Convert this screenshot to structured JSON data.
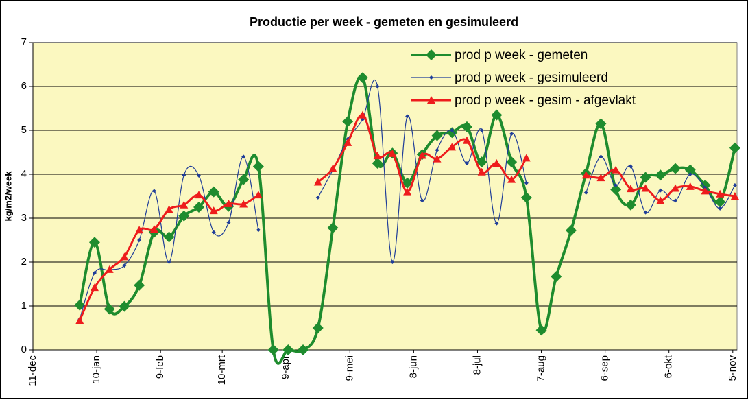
{
  "chart_data": {
    "type": "line",
    "title": "Productie per week - gemeten en gesimuleerd",
    "y_label": "kg/m2/week",
    "x": [
      "2-jan",
      "9-jan",
      "16-jan",
      "23-jan",
      "30-jan",
      "6-feb",
      "13-feb",
      "20-feb",
      "27-feb",
      "6-mrt",
      "13-mrt",
      "20-mrt",
      "27-mrt",
      "3-apr",
      "10-apr",
      "17-apr",
      "24-apr",
      "1-mei",
      "8-mei",
      "15-mei",
      "22-mei",
      "29-mei",
      "5-jun",
      "12-jun",
      "19-jun",
      "26-jun",
      "3-jul",
      "10-jul",
      "17-jul",
      "24-jul",
      "31-jul",
      "7-aug",
      "14-aug",
      "21-aug",
      "28-aug",
      "4-sep",
      "11-sep",
      "18-sep",
      "25-sep",
      "2-okt",
      "9-okt",
      "16-okt",
      "23-okt",
      "30-okt",
      "6-nov"
    ],
    "series": [
      {
        "name": "prod p week - gemeten",
        "color": "#1e8c2e",
        "marker": "diamond",
        "values": [
          1.02,
          2.45,
          0.93,
          0.99,
          1.47,
          2.68,
          2.57,
          3.05,
          3.25,
          3.6,
          3.27,
          3.88,
          4.18,
          0,
          0,
          0,
          0.5,
          2.78,
          5.2,
          6.2,
          4.25,
          4.48,
          3.8,
          4.45,
          4.88,
          4.95,
          5.08,
          4.28,
          5.35,
          4.28,
          3.47,
          0.45,
          1.67,
          2.72,
          4.02,
          5.15,
          3.65,
          3.3,
          3.93,
          3.98,
          4.13,
          4.1,
          3.75,
          3.37,
          4.6
        ]
      },
      {
        "name": "prod p week - gesimuleerd",
        "color": "#1f3d99",
        "marker": "small-diamond",
        "values": [
          0.7,
          1.75,
          1.82,
          1.92,
          2.5,
          3.62,
          2.0,
          3.98,
          3.97,
          2.68,
          2.9,
          4.4,
          2.73,
          null,
          null,
          null,
          3.47,
          4.1,
          4.8,
          5.25,
          6.0,
          2.0,
          5.32,
          3.4,
          4.55,
          5.0,
          4.25,
          5.0,
          2.88,
          4.92,
          3.8,
          null,
          null,
          null,
          3.58,
          4.4,
          3.75,
          4.18,
          3.13,
          3.63,
          3.4,
          4.0,
          3.7,
          3.22,
          3.75
        ]
      },
      {
        "name": "prod p week - gesim - afgevlakt",
        "color": "#ee1c1c",
        "marker": "triangle",
        "values": [
          0.67,
          1.42,
          1.83,
          2.12,
          2.73,
          2.75,
          3.2,
          3.3,
          3.53,
          3.17,
          3.33,
          3.32,
          3.53,
          null,
          null,
          null,
          3.82,
          4.13,
          4.72,
          5.35,
          4.42,
          4.47,
          3.6,
          4.43,
          4.35,
          4.62,
          4.77,
          4.05,
          4.25,
          3.88,
          4.37,
          null,
          null,
          null,
          3.98,
          3.92,
          4.1,
          3.67,
          3.68,
          3.4,
          3.68,
          3.72,
          3.62,
          3.55,
          3.5
        ]
      }
    ],
    "xlim": [
      "11-dec",
      "7-nov"
    ],
    "xticks": [
      "11-dec",
      "10-jan",
      "9-feb",
      "10-mrt",
      "9-apr",
      "9-mei",
      "8-jun",
      "8-jul",
      "7-aug",
      "6-sep",
      "6-okt",
      "5-nov"
    ],
    "ylim": [
      0,
      7
    ],
    "yticks": [
      0,
      1,
      2,
      3,
      4,
      5,
      6,
      7
    ],
    "grid": true,
    "legend": "top-right",
    "plot_background": "#fbf8c0"
  }
}
